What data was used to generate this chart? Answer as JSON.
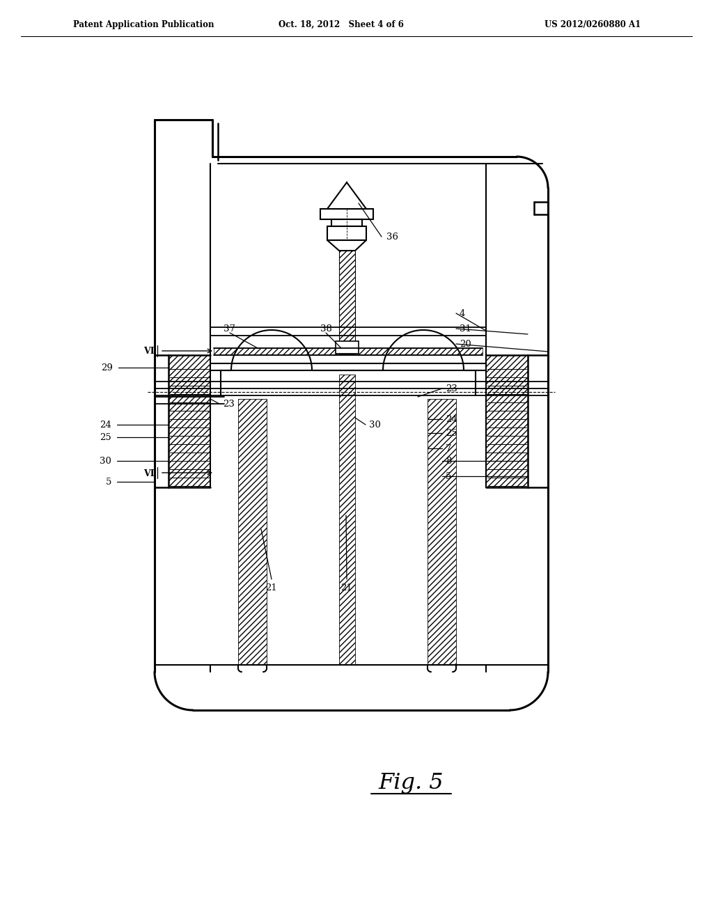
{
  "bg": "#ffffff",
  "lc": "#000000",
  "header_l": "Patent Application Publication",
  "header_c": "Oct. 18, 2012   Sheet 4 of 6",
  "header_r": "US 2012/0260880 A1",
  "fig_caption": "Fig. 5"
}
